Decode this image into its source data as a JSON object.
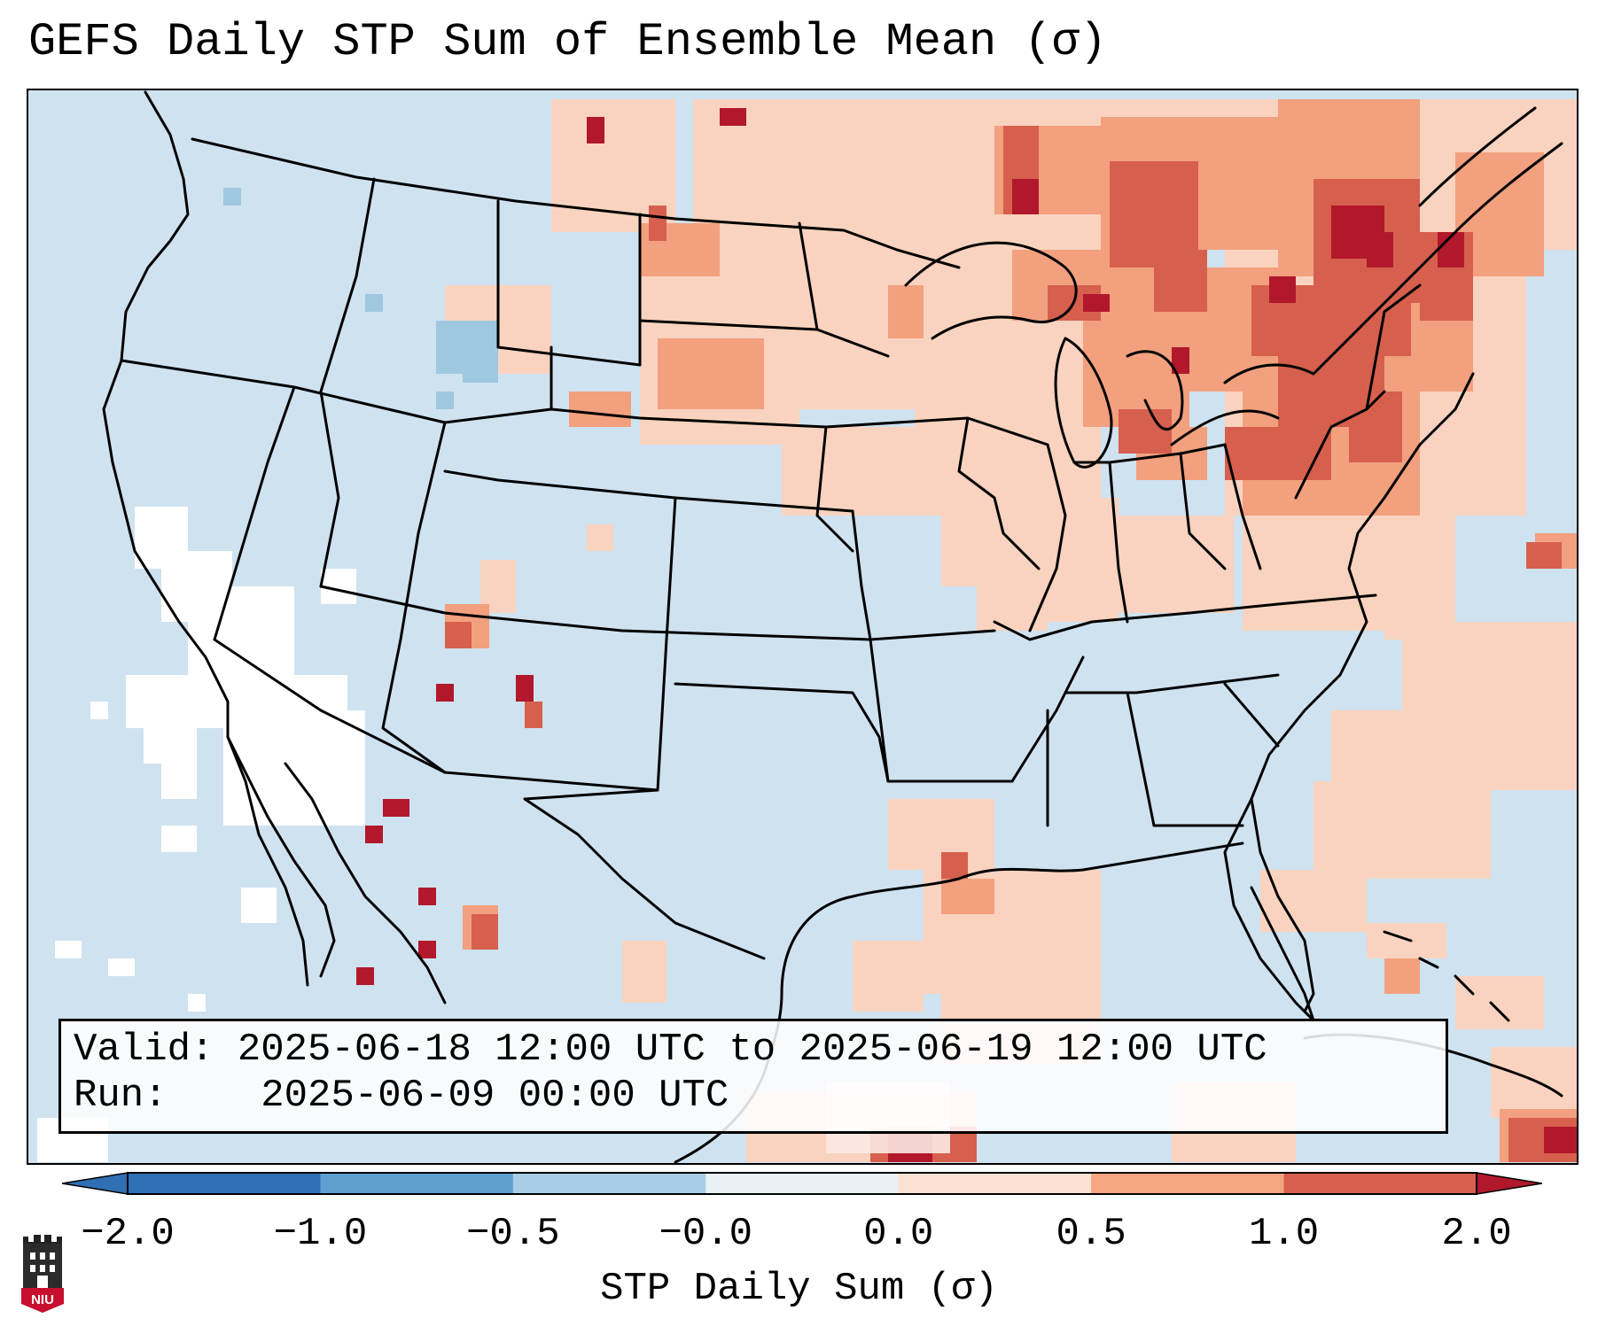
{
  "title": "GEFS Daily STP Sum of Ensemble Mean (σ)",
  "info": {
    "valid_label": "Valid:",
    "valid_text": "2025-06-18 12:00 UTC to 2025-06-19 12:00 UTC",
    "run_label": "Run:",
    "run_text": "2025-06-09 00:00 UTC"
  },
  "colorbar": {
    "label": "STP Daily Sum (σ)",
    "ticks": [
      "−2.0",
      "−1.0",
      "−0.5",
      "−0.0",
      "0.0",
      "0.5",
      "1.0",
      "2.0"
    ],
    "colors": [
      "#2f6fb3",
      "#5f9fd0",
      "#a9cde6",
      "#e9f1f6",
      "#fbe1d2",
      "#f4a582",
      "#d6604d",
      "#b2182b"
    ]
  },
  "map": {
    "background_color": "#cfe2ef",
    "region": "Contiguous United States, southern Canada, northern Mexico, Gulf of Mexico, western Atlantic",
    "color_legend": {
      "white": "#ffffff",
      "light_blue": "#9fc8e0",
      "light_salmon": "#f9d3bf",
      "salmon": "#f2a07e",
      "red": "#d2574a",
      "dark_red": "#b2182b"
    }
  },
  "logo": {
    "text": "NIU",
    "color": "#c8102e"
  }
}
